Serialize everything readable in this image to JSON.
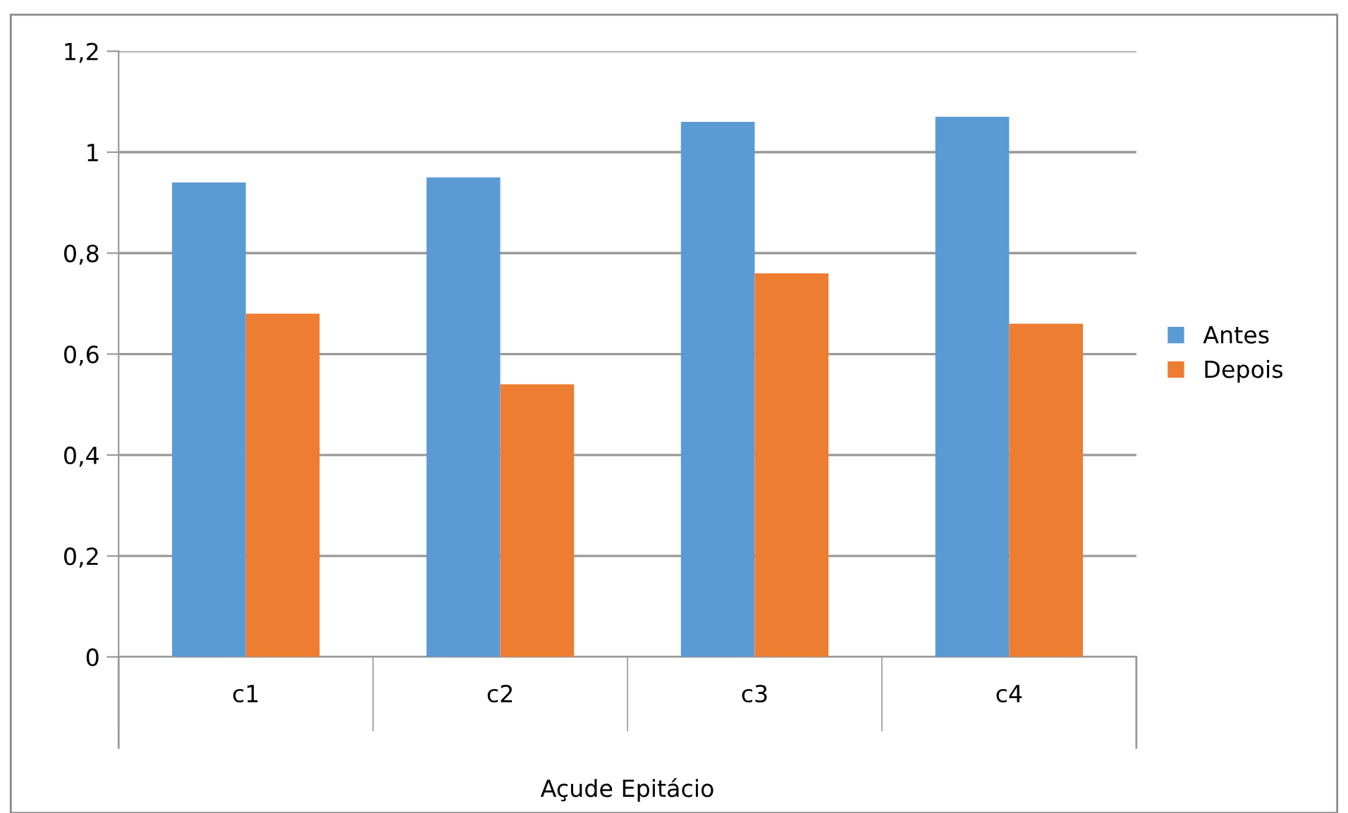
{
  "chart_data": {
    "type": "bar",
    "xlabel": "Açude Epitácio",
    "categories": [
      "c1",
      "c2",
      "c3",
      "c4"
    ],
    "series": [
      {
        "name": "Antes",
        "color": "#5b9bd5",
        "values": [
          0.94,
          0.95,
          1.06,
          1.07
        ]
      },
      {
        "name": "Depois",
        "color": "#ed7d31",
        "values": [
          0.68,
          0.54,
          0.76,
          0.66
        ]
      }
    ],
    "ylim": [
      0,
      1.2
    ],
    "yticks": [
      0,
      {
        "value": 0.2,
        "label": "0,2"
      },
      {
        "value": 0.4,
        "label": "0,4"
      },
      {
        "value": 0.6,
        "label": "0,6"
      },
      {
        "value": 0.8,
        "label": "0,8"
      },
      1,
      {
        "value": 1.2,
        "label": "1,2"
      }
    ],
    "grid": "y",
    "legend": "right"
  }
}
